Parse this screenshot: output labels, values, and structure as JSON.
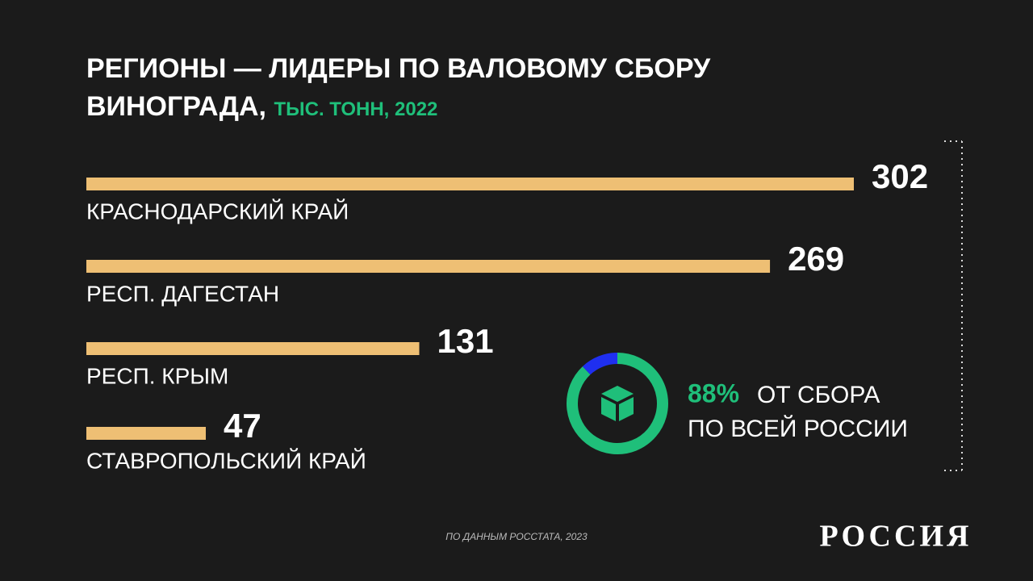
{
  "chart_data": [
    {
      "type": "hbar",
      "title": "РЕГИОНЫ — ЛИДЕРЫ ПО ВАЛОВОМУ СБОРУ ВИНОГРАДА,",
      "subtitle": "ТЫС. ТОНН, 2022",
      "categories": [
        "КРАСНОДАРСКИЙ КРАЙ",
        "РЕСП. ДАГЕСТАН",
        "РЕСП. КРЫМ",
        "СТАВРОПОЛЬСКИЙ КРАЙ"
      ],
      "values": [
        302,
        269,
        131,
        47
      ],
      "color": "#eebf74"
    },
    {
      "type": "donut",
      "values": [
        88,
        12
      ],
      "value_labels": [
        "88%",
        null
      ],
      "colors": [
        "#1fbf7a",
        "#1f2ff0"
      ],
      "caption_lines": [
        "ОТ СБОРА",
        "ПО ВСЕЙ РОССИИ"
      ]
    }
  ],
  "source": "ПО ДАННЫМ РОССТАТА, 2023",
  "logo": "РОССИЯ"
}
